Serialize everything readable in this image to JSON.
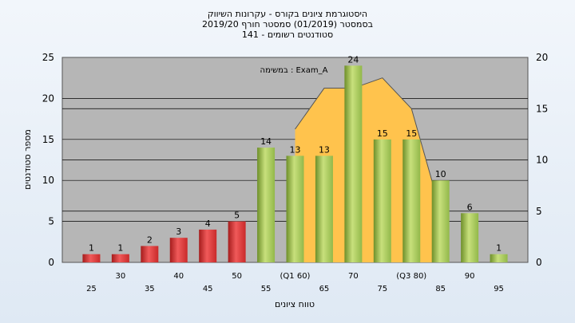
{
  "chart_data": {
    "type": "bar",
    "title_lines": [
      "היסטוגרמת ציונים בקורס - עקרונות השיווק",
      "בסמסטר  (01/2019)  סמסטר חורף 2019/20",
      "סטודנטים רשומים - 141"
    ],
    "xlabel": "טווח ציונים",
    "ylabel": "מספר סטודנטים",
    "annotation": "במשימה : Exam_A",
    "x_tick_labels": [
      "25",
      "30",
      "35",
      "40",
      "45",
      "50",
      "55",
      "(Q1 60)",
      "65",
      "70",
      "75",
      "(Q3 80)",
      "85",
      "90",
      "95"
    ],
    "values": [
      1,
      1,
      2,
      3,
      4,
      5,
      14,
      13,
      13,
      24,
      15,
      15,
      10,
      6,
      1
    ],
    "bar_colors": [
      "red",
      "red",
      "red",
      "red",
      "red",
      "red",
      "green",
      "green",
      "green",
      "green",
      "green",
      "green",
      "green",
      "green",
      "green"
    ],
    "ylim_left": [
      0,
      25
    ],
    "yticks_left": [
      0,
      5,
      10,
      15,
      20,
      25
    ],
    "ylim_right": [
      0,
      20
    ],
    "yticks_right": [
      0,
      5,
      10,
      15,
      20
    ],
    "area_series": {
      "points": [
        [
          7,
          13
        ],
        [
          8,
          17
        ],
        [
          9,
          17
        ],
        [
          10,
          18
        ],
        [
          11,
          15
        ],
        [
          12,
          5
        ]
      ]
    },
    "grid": true,
    "colors": {
      "plot_bg": "#b6b6b6",
      "red_bar": "#d93a3a",
      "green_bar": "#a5c75a",
      "area": "#ffc34d",
      "area_line": "#555555"
    }
  }
}
